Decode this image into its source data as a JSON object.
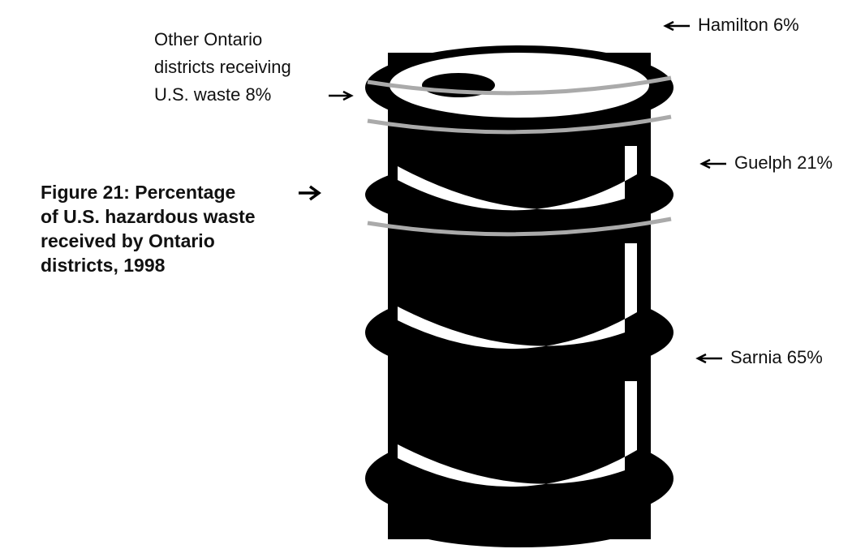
{
  "chart_data": {
    "type": "barrel",
    "title": "Figure 21: Percentage of U.S. hazardous waste received by Ontario districts, 1998",
    "categories": [
      "Hamilton",
      "Other Ontario districts receiving U.S. waste",
      "Guelph",
      "Sarnia"
    ],
    "values": [
      6,
      8,
      21,
      65
    ],
    "value_labels": [
      "6%",
      "8%",
      "21%",
      "65%"
    ],
    "color": "#000000"
  }
}
